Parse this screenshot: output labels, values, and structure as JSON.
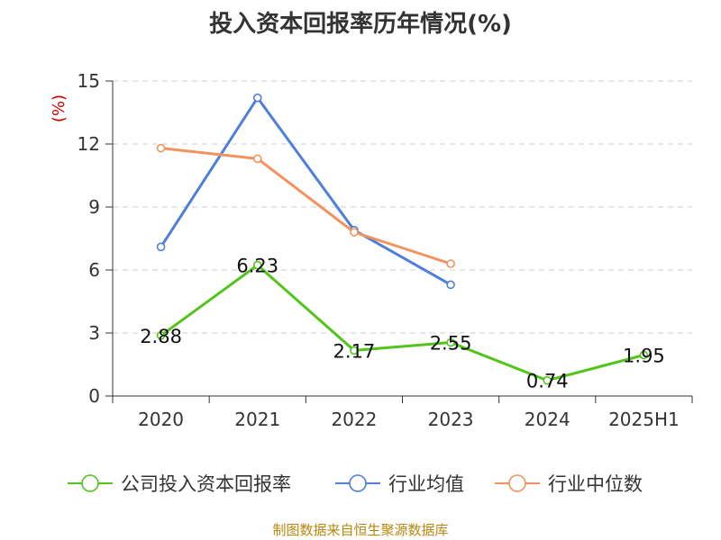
{
  "chart_data": {
    "type": "line",
    "title": "投入资本回报率历年情况(%)",
    "ylabel": "(%)",
    "ylim": [
      0,
      15
    ],
    "yticks": [
      0,
      3,
      6,
      9,
      12,
      15
    ],
    "categories": [
      "2020",
      "2021",
      "2022",
      "2023",
      "2024",
      "2025H1"
    ],
    "grid": true,
    "legend_position": "bottom",
    "series": [
      {
        "name": "公司投入资本回报率",
        "color": "#52c41a",
        "values": [
          2.88,
          6.23,
          2.17,
          2.55,
          0.74,
          1.95
        ],
        "labels": [
          "2.88",
          "6.23",
          "2.17",
          "2.55",
          "0.74",
          "1.95"
        ]
      },
      {
        "name": "行业均值",
        "color": "#4e7fdb",
        "values": [
          7.1,
          14.2,
          7.9,
          5.3,
          null,
          null
        ]
      },
      {
        "name": "行业中位数",
        "color": "#f4925e",
        "values": [
          11.8,
          11.3,
          7.8,
          6.3,
          null,
          null
        ]
      }
    ]
  },
  "source": "制图数据来自恒生聚源数据库"
}
